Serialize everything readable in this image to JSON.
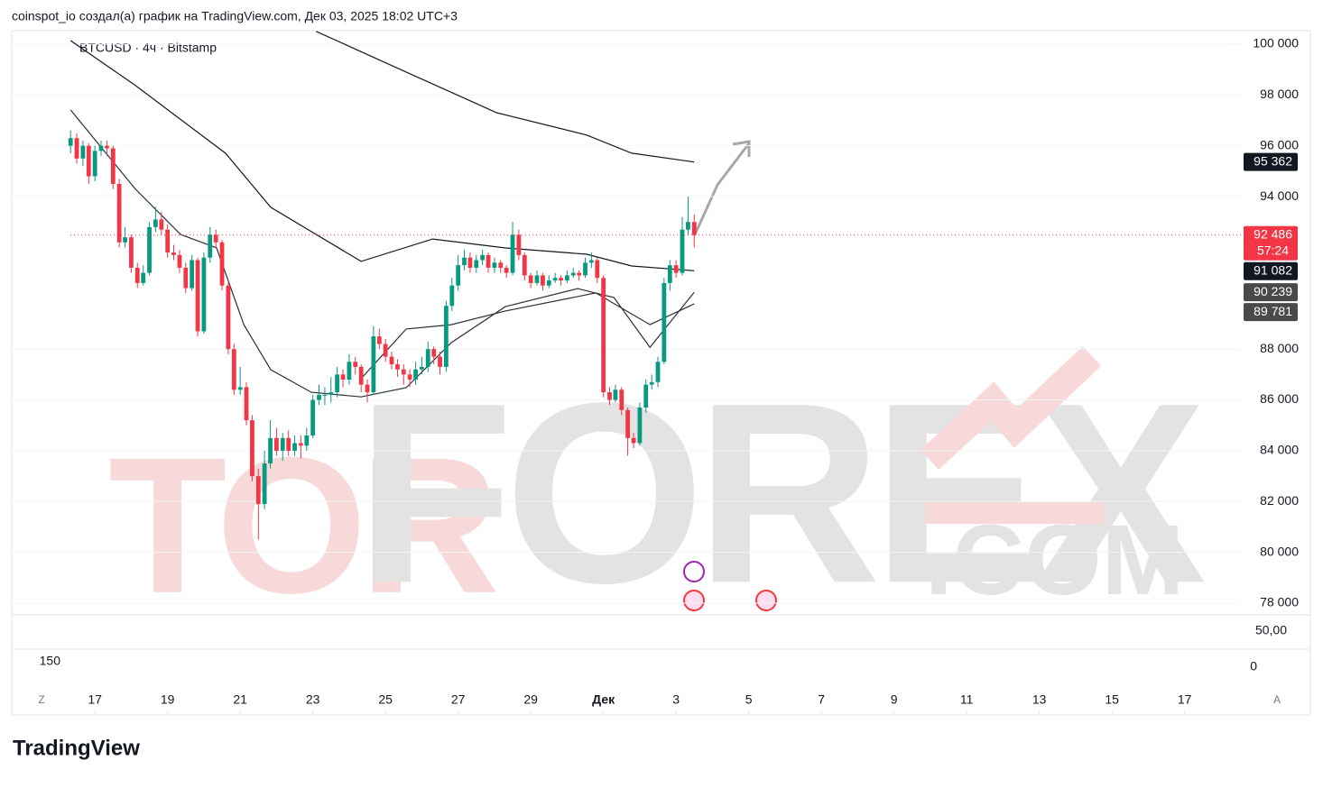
{
  "header": "coinspot_io создал(а) график на TradingView.com, Дек 03, 2025 18:02 UTC+3",
  "footer": "TradingView",
  "watermark": {
    "part1": "TOR",
    "part2": "FOREX",
    "part3": ".COM"
  },
  "chart_data": {
    "type": "candlestick",
    "title": "BTCUSD · 4ч · Bitstamp",
    "up_color": "#089981",
    "down_color": "#f23645",
    "xlim": [
      14.71,
      48.55
    ],
    "ylim": [
      77540,
      100530
    ],
    "xticks": [
      17,
      19,
      21,
      23,
      25,
      27,
      29,
      {
        "value": 31,
        "label": "Дек"
      },
      {
        "value": 33,
        "label": "3"
      },
      {
        "value": 35,
        "label": "5"
      },
      {
        "value": 37,
        "label": "7"
      },
      {
        "value": 39,
        "label": "9"
      },
      {
        "value": 41,
        "label": "11"
      },
      {
        "value": 43,
        "label": "13"
      },
      {
        "value": 45,
        "label": "15"
      },
      {
        "value": 47,
        "label": "17"
      }
    ],
    "yticks": [
      {
        "value": 78000,
        "label": "78 000"
      },
      {
        "value": 80000,
        "label": "80 000"
      },
      {
        "value": 82000,
        "label": "82 000"
      },
      {
        "value": 84000,
        "label": "84 000"
      },
      {
        "value": 86000,
        "label": "86 000"
      },
      {
        "value": 88000,
        "label": "88 000"
      },
      {
        "value": 94000,
        "label": "94 000"
      },
      {
        "value": 96000,
        "label": "96 000"
      },
      {
        "value": 98000,
        "label": "98 000"
      },
      {
        "value": 100000,
        "label": "100 000"
      }
    ],
    "x": [
      16.33,
      16.5,
      16.67,
      16.83,
      17,
      17.17,
      17.33,
      17.5,
      17.67,
      17.83,
      18,
      18.17,
      18.33,
      18.5,
      18.67,
      18.83,
      19,
      19.17,
      19.33,
      19.5,
      19.67,
      19.83,
      20,
      20.17,
      20.33,
      20.5,
      20.67,
      20.83,
      21,
      21.17,
      21.33,
      21.5,
      21.67,
      21.83,
      22,
      22.17,
      22.33,
      22.5,
      22.67,
      22.83,
      23,
      23.17,
      23.33,
      23.5,
      23.67,
      23.83,
      24,
      24.17,
      24.33,
      24.5,
      24.67,
      24.83,
      25,
      25.17,
      25.33,
      25.5,
      25.67,
      25.83,
      26,
      26.17,
      26.33,
      26.5,
      26.67,
      26.83,
      27,
      27.17,
      27.33,
      27.5,
      27.67,
      27.83,
      28,
      28.17,
      28.33,
      28.5,
      28.67,
      28.83,
      29,
      29.17,
      29.33,
      29.5,
      29.67,
      29.83,
      30,
      30.17,
      30.33,
      30.5,
      30.67,
      30.83,
      31,
      31.17,
      31.33,
      31.5,
      31.67,
      31.83,
      32,
      32.17,
      32.33,
      32.5,
      32.67,
      32.83,
      33,
      33.17,
      33.33,
      33.5
    ],
    "open": [
      96000,
      96300,
      95500,
      96000,
      94800,
      95800,
      96000,
      95900,
      94500,
      92200,
      92400,
      91200,
      90600,
      91000,
      92800,
      93100,
      92700,
      91800,
      91700,
      91200,
      90400,
      91500,
      88700,
      91600,
      92500,
      92200,
      90500,
      88000,
      86400,
      86500,
      85200,
      83000,
      81900,
      83500,
      84500,
      84000,
      84500,
      84000,
      84300,
      84200,
      84600,
      86000,
      86200,
      86200,
      86300,
      87000,
      86800,
      87500,
      87300,
      86600,
      86300,
      88500,
      88200,
      87700,
      87400,
      87200,
      87000,
      86800,
      87200,
      87300,
      88000,
      87700,
      87300,
      89700,
      90500,
      91300,
      91600,
      91200,
      91500,
      91700,
      91200,
      91400,
      91200,
      91000,
      92500,
      91700,
      90900,
      90600,
      90900,
      90500,
      90700,
      90800,
      90700,
      90900,
      91000,
      90900,
      91400,
      91500,
      90800,
      86300,
      86000,
      86400,
      85600,
      84500,
      84300,
      85700,
      86600,
      86700,
      87500,
      90600,
      91300,
      91000,
      92700,
      93000
    ],
    "high": [
      96600,
      96500,
      96200,
      96100,
      96000,
      96200,
      96200,
      96000,
      94700,
      92800,
      92500,
      91400,
      91300,
      93000,
      93600,
      93400,
      92900,
      92100,
      91900,
      91400,
      91700,
      91600,
      91800,
      92800,
      92700,
      92300,
      90600,
      88200,
      87300,
      86700,
      85400,
      83300,
      84000,
      85200,
      84900,
      84700,
      84800,
      84600,
      84600,
      84900,
      86200,
      86600,
      86500,
      86900,
      87300,
      87200,
      87800,
      87700,
      87400,
      86800,
      88900,
      88800,
      88400,
      87900,
      87600,
      87400,
      87200,
      87500,
      87700,
      88300,
      88100,
      87900,
      89900,
      90800,
      91700,
      91900,
      91800,
      91700,
      91900,
      91800,
      91600,
      91500,
      91300,
      93000,
      92700,
      91800,
      91000,
      91100,
      91000,
      90900,
      91000,
      90900,
      91100,
      91200,
      91100,
      91600,
      91800,
      91600,
      90900,
      86500,
      86600,
      86500,
      85700,
      84700,
      85900,
      86800,
      87000,
      87700,
      90800,
      91500,
      91500,
      93200,
      94000,
      93300
    ],
    "low": [
      95700,
      95300,
      95200,
      94500,
      94600,
      95600,
      95600,
      94300,
      92000,
      92000,
      91000,
      90400,
      90500,
      90900,
      92600,
      92500,
      91600,
      91500,
      91000,
      90200,
      90300,
      88500,
      88600,
      91400,
      92000,
      90300,
      87800,
      86200,
      86200,
      85000,
      82800,
      80500,
      81700,
      83300,
      83800,
      83600,
      83800,
      83800,
      83700,
      84000,
      84500,
      85800,
      85800,
      85900,
      86100,
      86500,
      86600,
      87000,
      86300,
      85900,
      86200,
      88000,
      87500,
      87200,
      86900,
      86600,
      86500,
      86600,
      87000,
      87100,
      87400,
      87000,
      87100,
      89500,
      90300,
      91100,
      91000,
      91000,
      91300,
      91000,
      91000,
      91000,
      90800,
      90900,
      91500,
      90700,
      90400,
      90500,
      90300,
      90400,
      90600,
      90500,
      90600,
      90800,
      90700,
      90800,
      91200,
      90600,
      86100,
      85800,
      85900,
      85400,
      83800,
      84100,
      84200,
      85500,
      86400,
      86500,
      87400,
      90300,
      90800,
      90900,
      92500,
      92000
    ],
    "close": [
      96300,
      95500,
      96000,
      94800,
      95800,
      96000,
      95900,
      94500,
      92200,
      92400,
      91200,
      90600,
      91000,
      92800,
      93100,
      92700,
      91800,
      91700,
      91200,
      90400,
      91500,
      88700,
      91600,
      92500,
      92200,
      90500,
      88000,
      86400,
      86500,
      85200,
      83000,
      81900,
      83500,
      84500,
      84000,
      84500,
      84000,
      84300,
      84200,
      84600,
      86000,
      86200,
      86200,
      86300,
      87000,
      86800,
      87500,
      87300,
      86600,
      86300,
      88500,
      88200,
      87700,
      87400,
      87200,
      87000,
      86800,
      87200,
      87300,
      88000,
      87700,
      87300,
      89700,
      90500,
      91300,
      91600,
      91200,
      91500,
      91700,
      91200,
      91400,
      91200,
      91000,
      92500,
      91700,
      90900,
      90600,
      90900,
      90500,
      90700,
      90800,
      90700,
      90900,
      91000,
      90900,
      91400,
      91500,
      90800,
      86300,
      86000,
      86400,
      85600,
      84500,
      84300,
      85700,
      86600,
      86700,
      87500,
      90600,
      91300,
      91000,
      92700,
      93000,
      92486
    ],
    "lines": [
      {
        "color": "#131722",
        "x": [
          23.09,
          25.57,
          28.06,
          30.54,
          31.78,
          33.5
        ],
        "values": [
          100500,
          98900,
          97300,
          96420,
          95710,
          95362
        ]
      },
      {
        "color": "#131722",
        "x": [
          16.33,
          18.12,
          20.6,
          21.84,
          24.33,
          26.3,
          28.3,
          30.54,
          31.78,
          33.5
        ],
        "values": [
          100140,
          98370,
          95700,
          93580,
          91450,
          92330,
          91980,
          91730,
          91270,
          91082
        ]
      },
      {
        "color": "#2a2e39",
        "x": [
          16.33,
          18.12,
          19.36,
          20.35,
          21.1,
          21.84,
          22.96,
          24.33,
          25.57,
          26.81,
          28.3,
          30.29,
          31.29,
          32.28,
          33.5
        ],
        "values": [
          97410,
          94290,
          92510,
          91980,
          88960,
          87190,
          86300,
          86120,
          86480,
          88250,
          89670,
          90380,
          90030,
          88070,
          90239
        ]
      },
      {
        "color": "#2a2e39",
        "x": [
          24.33,
          25.57,
          26.81,
          28.3,
          30.79,
          32.28,
          33.5
        ],
        "values": [
          86840,
          88790,
          88960,
          89500,
          90210,
          88960,
          89781
        ]
      }
    ],
    "price_labels": [
      {
        "value": 95362,
        "label": "95 362",
        "color": "#131722"
      },
      {
        "value": 92486,
        "label": "92 486",
        "color": "#f23645",
        "countdown": "57:24"
      },
      {
        "value": 91082,
        "label": "91 082",
        "color": "#131722"
      },
      {
        "value": 90239,
        "label": "90 239",
        "color": "#4a4a4a"
      },
      {
        "value": 89781,
        "label": "89 781",
        "color": "#4a4a4a"
      }
    ],
    "lower_pane": {
      "top_label": "50,00",
      "bottom_label": "0",
      "left_label": "150"
    },
    "buttons": {
      "left": "Z",
      "right": "A"
    }
  }
}
